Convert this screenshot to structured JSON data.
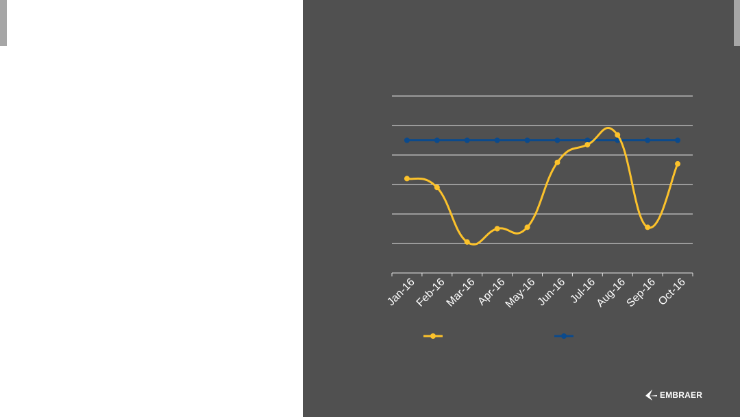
{
  "logo": {
    "text": "EMBRAER",
    "icon": "embraer-logo-icon"
  },
  "colors": {
    "background_left": "#ffffff",
    "background_right": "#505050",
    "tab": "#a6a6a6",
    "gridline": "#e6e6e6",
    "series_1": "#fcc22b",
    "series_2": "#0b4a8c"
  },
  "chart_data": {
    "type": "line",
    "categories": [
      "Jan-16",
      "Feb-16",
      "Mar-16",
      "Apr-16",
      "May-16",
      "Jun-16",
      "Jul-16",
      "Aug-16",
      "Sep-16",
      "Oct-16"
    ],
    "series": [
      {
        "values": [
          3.2,
          2.9,
          1.05,
          1.5,
          1.55,
          3.75,
          4.35,
          4.68,
          1.55,
          3.7
        ],
        "color": "#fcc22b",
        "smooth": true
      },
      {
        "values": [
          4.5,
          4.5,
          4.5,
          4.5,
          4.5,
          4.5,
          4.5,
          4.5,
          4.5,
          4.5
        ],
        "color": "#0b4a8c",
        "smooth": false
      }
    ],
    "ylim": [
      0,
      6
    ],
    "y_ticks": [
      1,
      2,
      3,
      4,
      5,
      6
    ],
    "y_tick_labels_visible": false,
    "grid": true,
    "legend": "bottom"
  }
}
